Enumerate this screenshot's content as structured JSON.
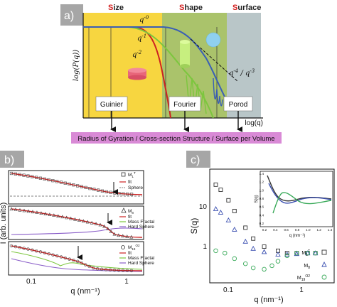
{
  "panel_a": {
    "label": "a)",
    "regions": [
      {
        "initial": "S",
        "rest": "ize",
        "color": "#f7d640"
      },
      {
        "initial": "S",
        "rest": "hape",
        "color": "#aac36b"
      },
      {
        "initial": "S",
        "rest": "urface",
        "color": "#b9c6c8"
      }
    ],
    "ylabel": "log(P(q))",
    "xlabel": "log(q)",
    "curve_labels": [
      "q^-0",
      "q^-1",
      "q^-2",
      "q^-4 / q^-3"
    ],
    "boxes": [
      "Guinier",
      "Fourier",
      "Porod"
    ],
    "bottom_banner": "Radius of Gyration / Cross-section Structure / Surface per Volume",
    "colors": {
      "red": "#cc2222",
      "green": "#7cc63e",
      "blue": "#3a5fb5",
      "banner": "#d98ad6"
    }
  },
  "panel_b": {
    "label": "b)",
    "ylabel": "I (arb. units)",
    "xlabel": "q (nm⁻¹)",
    "xticks": [
      "0.1",
      "1"
    ],
    "subplots": [
      {
        "legend": [
          {
            "label": "M",
            "sub": "1",
            "sup": "T",
            "marker": "square"
          },
          {
            "label": "fit"
          },
          {
            "label": "Sphere"
          }
        ]
      },
      {
        "legend": [
          {
            "label": "M",
            "sub": "8",
            "marker": "triangle"
          },
          {
            "label": "fit"
          },
          {
            "label": "Mass Fractal"
          },
          {
            "label": "Hard Sphere"
          }
        ]
      },
      {
        "legend": [
          {
            "label": "M",
            "sub": "19",
            "sup": "O2",
            "marker": "circle"
          },
          {
            "label": "fit"
          },
          {
            "label": "Mass Fractal"
          },
          {
            "label": "Hard Sphere"
          }
        ]
      }
    ]
  },
  "panel_c": {
    "label": "c)",
    "ylabel": "S(q)",
    "xlabel": "q (nm⁻¹)",
    "yticks": [
      "10",
      "1"
    ],
    "xticks": [
      "0.1",
      "1"
    ],
    "legend": [
      {
        "label": "M",
        "sub": "1",
        "sup": "T",
        "marker": "square",
        "color": "#333333"
      },
      {
        "label": "M",
        "sub": "8",
        "marker": "triangle",
        "color": "#3a4fb0"
      },
      {
        "label": "M",
        "sub": "19",
        "sup": "O2",
        "marker": "circle",
        "color": "#3aaa5a"
      }
    ],
    "inset": {
      "ylabel": "S(q)",
      "xlabel": "q (nm⁻¹)",
      "xticks": [
        "0.2",
        "0.4",
        "0.6",
        "0.8",
        "1.0",
        "1.2",
        "1.4"
      ],
      "yticks": [
        "0.2",
        "0.4",
        "0.6",
        "0.8",
        "1.0",
        "1.2",
        "1.4"
      ]
    }
  },
  "chart_data": [
    {
      "type": "line",
      "panel": "a",
      "xlabel": "log(q)",
      "ylabel": "log(P(q))",
      "series": [
        {
          "name": "q^-0",
          "color": "#cc2222",
          "x": [
            0.0,
            0.2,
            0.25,
            0.35,
            0.42,
            0.45
          ],
          "values": [
            1.0,
            1.0,
            0.9,
            0.55,
            0.1,
            0.0
          ]
        },
        {
          "name": "q^-1",
          "color": "#7cc63e",
          "x": [
            0.0,
            0.3,
            0.45,
            0.6,
            0.72
          ],
          "values": [
            1.0,
            0.98,
            0.7,
            0.35,
            0.0
          ]
        },
        {
          "name": "q^-2",
          "color": "#3a5fb5",
          "x": [
            0.0,
            0.5,
            0.62,
            0.75,
            0.92
          ],
          "values": [
            1.0,
            0.97,
            0.75,
            0.4,
            0.05
          ]
        }
      ]
    },
    {
      "type": "scatter",
      "panel": "c",
      "xlabel": "q (nm⁻¹)",
      "ylabel": "S(q)",
      "xscale": "log",
      "yscale": "log",
      "xlim": [
        0.04,
        4
      ],
      "ylim": [
        0.3,
        30
      ],
      "series": [
        {
          "name": "M1T",
          "x": [
            0.05,
            0.06,
            0.08,
            0.1,
            0.15,
            0.2,
            0.3,
            0.5,
            0.7,
            1.0,
            1.5,
            2.0
          ],
          "values": [
            16.0,
            13.0,
            8.5,
            5.5,
            2.8,
            1.8,
            1.3,
            1.1,
            1.0,
            1.0,
            1.0,
            1.0
          ]
        },
        {
          "name": "M8",
          "x": [
            0.05,
            0.06,
            0.08,
            0.1,
            0.15,
            0.2,
            0.3,
            0.5,
            0.7,
            1.0,
            1.5,
            2.0
          ],
          "values": [
            6.0,
            5.2,
            3.8,
            2.6,
            1.6,
            1.2,
            1.05,
            0.95,
            0.95,
            0.97,
            1.0,
            1.0
          ]
        },
        {
          "name": "M19O2",
          "x": [
            0.05,
            0.07,
            0.1,
            0.15,
            0.2,
            0.3,
            0.4,
            0.5,
            0.7,
            1.0,
            1.5,
            2.0
          ],
          "values": [
            1.1,
            1.0,
            0.8,
            0.65,
            0.55,
            0.52,
            0.6,
            0.72,
            0.9,
            1.0,
            1.0,
            1.0
          ]
        }
      ]
    }
  ]
}
